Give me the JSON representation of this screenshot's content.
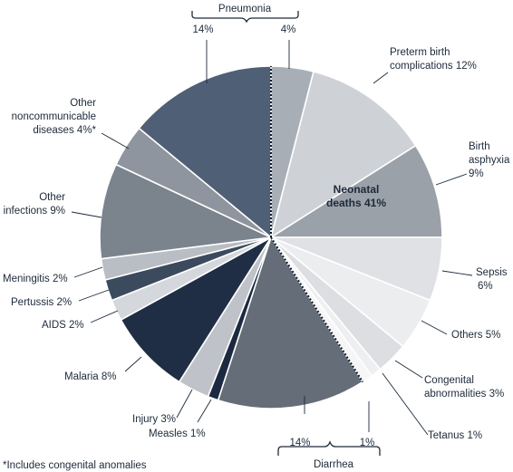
{
  "chart_data": {
    "type": "pie",
    "center_label": [
      "Neonatal",
      "deaths 41%"
    ],
    "slices": [
      {
        "label": [
          "Pneumonia 4%"
        ],
        "value": 4,
        "color": "#a8aeb6",
        "group": "pneumonia"
      },
      {
        "label": [
          "Preterm birth",
          "complications 12%"
        ],
        "value": 12,
        "color": "#ced2d7"
      },
      {
        "label": [
          "Birth",
          "asphyxia",
          "9%"
        ],
        "value": 9,
        "color": "#9ba1a9"
      },
      {
        "label": [
          "Sepsis",
          "6%"
        ],
        "value": 6,
        "color": "#dfe1e4"
      },
      {
        "label": [
          "Others 5%"
        ],
        "value": 5,
        "color": "#ecedef"
      },
      {
        "label": [
          "Congenital",
          "abnormalities 3%"
        ],
        "value": 3,
        "color": "#dcdee1"
      },
      {
        "label": [
          "Tetanus 1%"
        ],
        "value": 1,
        "color": "#eeeff1"
      },
      {
        "label": [
          "Diarrhea 1%"
        ],
        "value": 1,
        "color": "#f6f6f7",
        "group": "diarrhea"
      },
      {
        "label": [
          "Diarrhea 14%"
        ],
        "value": 14,
        "color": "#646d78",
        "group": "diarrhea"
      },
      {
        "label": [
          "Measles 1%"
        ],
        "value": 1,
        "color": "#1b2a40"
      },
      {
        "label": [
          "Injury 3%"
        ],
        "value": 3,
        "color": "#bfc3c9"
      },
      {
        "label": [
          "Malaria 8%"
        ],
        "value": 8,
        "color": "#1f2e45"
      },
      {
        "label": [
          "AIDS 2%"
        ],
        "value": 2,
        "color": "#d4d7db"
      },
      {
        "label": [
          "Pertussis 2%"
        ],
        "value": 2,
        "color": "#3b4a5d"
      },
      {
        "label": [
          "Meningitis 2%"
        ],
        "value": 2,
        "color": "#b9bec4"
      },
      {
        "label": [
          "Other",
          "infections 9%"
        ],
        "value": 9,
        "color": "#7b838d"
      },
      {
        "label": [
          "Other",
          "noncommunicable",
          "diseases 4%*"
        ],
        "value": 4,
        "color": "#8e959e"
      },
      {
        "label": [
          "Pneumonia 14%"
        ],
        "value": 14,
        "color": "#4f5f75",
        "group": "pneumonia"
      }
    ],
    "group_labels": {
      "pneumonia": {
        "name": "Pneumonia",
        "left_pct": "14%",
        "right_pct": "4%"
      },
      "diarrhea": {
        "name": "Diarrhea",
        "left_pct": "14%",
        "right_pct": "1%"
      }
    },
    "footnote": "*Includes congenital anomalies"
  },
  "text": {
    "pneumonia": "Pneumonia",
    "pneumonia_14": "14%",
    "pneumonia_4": "4%",
    "preterm_1": "Preterm birth",
    "preterm_2": "complications 12%",
    "birth_1": "Birth",
    "birth_2": "asphyxia",
    "birth_3": "9%",
    "neonatal_1": "Neonatal",
    "neonatal_2": "deaths 41%",
    "sepsis_1": "Sepsis",
    "sepsis_2": "6%",
    "others": "Others 5%",
    "congenital_1": "Congenital",
    "congenital_2": "abnormalities 3%",
    "tetanus": "Tetanus 1%",
    "diarrhea": "Diarrhea",
    "diarrhea_14": "14%",
    "diarrhea_1": "1%",
    "measles": "Measles 1%",
    "injury": "Injury 3%",
    "malaria": "Malaria 8%",
    "aids": "AIDS 2%",
    "pertussis": "Pertussis 2%",
    "meningitis": "Meningitis 2%",
    "other_inf_1": "Other",
    "other_inf_2": "infections 9%",
    "ncd_1": "Other",
    "ncd_2": "noncommunicable",
    "ncd_3": "diseases 4%*",
    "footnote": "*Includes congenital anomalies"
  }
}
